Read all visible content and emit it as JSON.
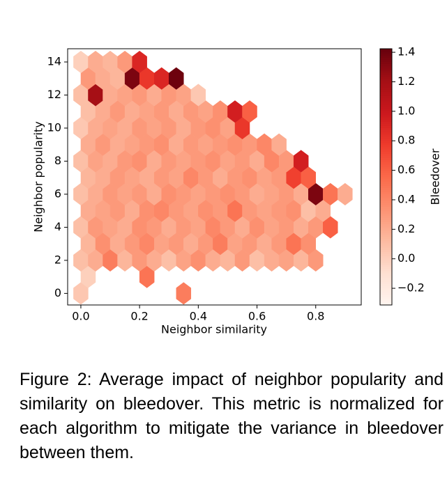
{
  "chart_data": {
    "type": "hexbin",
    "xlabel": "Neighbor similarity",
    "ylabel": "Neighbor popularity",
    "colorbar_label": "Bleedover",
    "colormap": "Reds",
    "xlim": [
      -0.045,
      0.955
    ],
    "ylim": [
      -0.7,
      14.8
    ],
    "clim": [
      -0.313,
      1.424
    ],
    "xticks": [
      {
        "value": 0,
        "label": "0.0"
      },
      {
        "value": 0.2,
        "label": "0.2"
      },
      {
        "value": 0.4,
        "label": "0.4"
      },
      {
        "value": 0.6,
        "label": "0.6"
      },
      {
        "value": 0.8,
        "label": "0.8"
      }
    ],
    "yticks": [
      0,
      2,
      4,
      6,
      8,
      10,
      12,
      14
    ],
    "cticks": [
      {
        "value": -0.2,
        "label": "−0.2"
      },
      {
        "value": 0,
        "label": "0.0"
      },
      {
        "value": 0.2,
        "label": "0.2"
      },
      {
        "value": 0.4,
        "label": "0.4"
      },
      {
        "value": 0.6,
        "label": "0.6"
      },
      {
        "value": 0.8,
        "label": "0.8"
      },
      {
        "value": 1.0,
        "label": "1.0"
      },
      {
        "value": 1.2,
        "label": "1.2"
      },
      {
        "value": 1.4,
        "label": "1.4"
      }
    ],
    "rows": [
      {
        "y": 0,
        "x": [
          0,
          0.35
        ],
        "values": [
          0.05,
          0.45
        ]
      },
      {
        "y": 1,
        "x": [
          0.025,
          0.225
        ],
        "values": [
          0.0,
          0.5
        ]
      },
      {
        "y": 2,
        "x": [
          0,
          0.05,
          0.1,
          0.15,
          0.2,
          0.25,
          0.3,
          0.35,
          0.4,
          0.45,
          0.5,
          0.55,
          0.6,
          0.65,
          0.7,
          0.75,
          0.8
        ],
        "values": [
          0.1,
          0.2,
          0.45,
          0.15,
          0.3,
          0.2,
          0.1,
          0.25,
          0.35,
          0.2,
          0.15,
          0.3,
          0.1,
          0.2,
          0.25,
          0.15,
          0.3
        ]
      },
      {
        "y": 3,
        "x": [
          0.025,
          0.075,
          0.125,
          0.175,
          0.225,
          0.275,
          0.325,
          0.375,
          0.425,
          0.475,
          0.525,
          0.575,
          0.625,
          0.675,
          0.725,
          0.775
        ],
        "values": [
          0.15,
          0.35,
          0.2,
          0.3,
          0.4,
          0.25,
          0.3,
          0.2,
          0.3,
          0.45,
          0.25,
          0.3,
          0.2,
          0.3,
          0.5,
          0.35
        ]
      },
      {
        "y": 4,
        "x": [
          0,
          0.05,
          0.1,
          0.15,
          0.2,
          0.25,
          0.3,
          0.35,
          0.4,
          0.45,
          0.5,
          0.55,
          0.6,
          0.65,
          0.7,
          0.75,
          0.8,
          0.85
        ],
        "values": [
          0.1,
          0.3,
          0.25,
          0.2,
          0.35,
          0.3,
          0.2,
          0.3,
          0.25,
          0.4,
          0.3,
          0.2,
          0.35,
          0.25,
          0.3,
          0.2,
          0.3,
          0.6
        ]
      },
      {
        "y": 5,
        "x": [
          0.025,
          0.075,
          0.125,
          0.175,
          0.225,
          0.275,
          0.325,
          0.375,
          0.425,
          0.475,
          0.525,
          0.575,
          0.625,
          0.675,
          0.725,
          0.775,
          0.825
        ],
        "values": [
          0.2,
          0.25,
          0.3,
          0.2,
          0.35,
          0.4,
          0.3,
          0.25,
          0.35,
          0.3,
          0.5,
          0.3,
          0.25,
          0.3,
          0.35,
          0.1,
          0.2
        ]
      },
      {
        "y": 6,
        "x": [
          0,
          0.05,
          0.1,
          0.15,
          0.2,
          0.25,
          0.3,
          0.35,
          0.4,
          0.45,
          0.5,
          0.55,
          0.6,
          0.65,
          0.7,
          0.75,
          0.8,
          0.85,
          0.9
        ],
        "values": [
          0.1,
          0.2,
          0.3,
          0.25,
          0.3,
          0.2,
          0.35,
          0.3,
          0.25,
          0.3,
          0.35,
          0.3,
          0.2,
          0.25,
          0.3,
          0.2,
          1.35,
          0.5,
          0.2
        ]
      },
      {
        "y": 7,
        "x": [
          0.025,
          0.075,
          0.125,
          0.175,
          0.225,
          0.275,
          0.325,
          0.375,
          0.425,
          0.475,
          0.525,
          0.575,
          0.625,
          0.675,
          0.725,
          0.775
        ],
        "values": [
          0.15,
          0.2,
          0.3,
          0.25,
          0.2,
          0.3,
          0.25,
          0.4,
          0.3,
          0.2,
          0.3,
          0.35,
          0.25,
          0.3,
          0.75,
          0.6
        ]
      },
      {
        "y": 8,
        "x": [
          0,
          0.05,
          0.1,
          0.15,
          0.2,
          0.25,
          0.3,
          0.35,
          0.4,
          0.45,
          0.5,
          0.55,
          0.6,
          0.65,
          0.7,
          0.75
        ],
        "values": [
          0.1,
          0.25,
          0.2,
          0.3,
          0.35,
          0.2,
          0.3,
          0.25,
          0.3,
          0.35,
          0.25,
          0.3,
          0.2,
          0.4,
          0.3,
          0.95
        ]
      },
      {
        "y": 9,
        "x": [
          0.025,
          0.075,
          0.125,
          0.175,
          0.225,
          0.275,
          0.325,
          0.375,
          0.425,
          0.475,
          0.525,
          0.575,
          0.625,
          0.675
        ],
        "values": [
          0.2,
          0.3,
          0.2,
          0.25,
          0.3,
          0.35,
          0.2,
          0.3,
          0.25,
          0.3,
          0.35,
          0.3,
          0.4,
          0.2
        ]
      },
      {
        "y": 10,
        "x": [
          0,
          0.05,
          0.1,
          0.15,
          0.2,
          0.25,
          0.3,
          0.35,
          0.4,
          0.45,
          0.5,
          0.55
        ],
        "values": [
          0.05,
          0.2,
          0.25,
          0.2,
          0.3,
          0.25,
          0.3,
          0.2,
          0.3,
          0.35,
          0.25,
          0.8
        ]
      },
      {
        "y": 11,
        "x": [
          0.025,
          0.075,
          0.125,
          0.175,
          0.225,
          0.275,
          0.325,
          0.375,
          0.425,
          0.475,
          0.525,
          0.575
        ],
        "values": [
          0.1,
          0.2,
          0.3,
          0.2,
          0.25,
          0.3,
          0.2,
          0.3,
          0.25,
          0.35,
          0.95,
          0.6
        ]
      },
      {
        "y": 12,
        "x": [
          0,
          0.05,
          0.1,
          0.15,
          0.2,
          0.25,
          0.3,
          0.35,
          0.4
        ],
        "values": [
          0.1,
          1.2,
          0.2,
          0.25,
          0.3,
          0.2,
          0.3,
          0.25,
          0.05
        ]
      },
      {
        "y": 13,
        "x": [
          0.025,
          0.075,
          0.125,
          0.175,
          0.225,
          0.275,
          0.325
        ],
        "values": [
          0.3,
          0.2,
          0.15,
          1.35,
          0.8,
          0.9,
          1.4
        ]
      },
      {
        "y": 14,
        "x": [
          0,
          0.05,
          0.1,
          0.15,
          0.2
        ],
        "values": [
          0.0,
          0.2,
          0.15,
          0.3,
          0.9
        ]
      }
    ]
  },
  "caption": "Figure 2:  Average impact of neighbor popularity and similarity on bleedover. This metric is normalized for each algorithm to mitigate the variance in bleedover between them."
}
